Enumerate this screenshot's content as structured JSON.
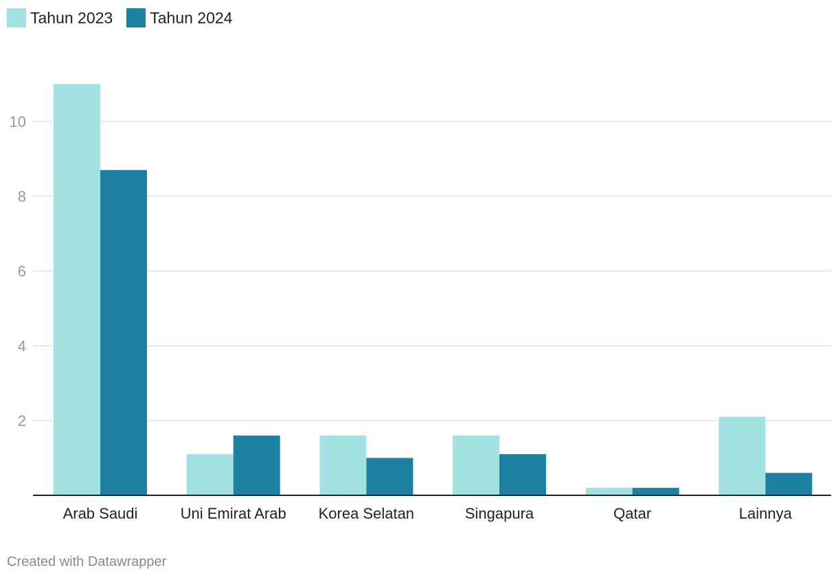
{
  "legend": [
    {
      "label": "Tahun 2023",
      "color": "#a2e2e3"
    },
    {
      "label": "Tahun 2024",
      "color": "#1d81a2"
    }
  ],
  "chart_data": {
    "type": "bar",
    "categories": [
      "Arab Saudi",
      "Uni Emirat Arab",
      "Korea Selatan",
      "Singapura",
      "Qatar",
      "Lainnya"
    ],
    "series": [
      {
        "name": "Tahun 2023",
        "color": "#a2e2e3",
        "values": [
          11.0,
          1.1,
          1.6,
          1.6,
          0.2,
          2.1
        ]
      },
      {
        "name": "Tahun 2024",
        "color": "#1d81a2",
        "values": [
          8.7,
          1.6,
          1.0,
          1.1,
          0.2,
          0.6
        ]
      }
    ],
    "yticks": [
      2,
      4,
      6,
      8,
      10
    ],
    "ylim": [
      0,
      11
    ],
    "grid": true,
    "legend_position": "top-left"
  },
  "footer": "Created with Datawrapper"
}
